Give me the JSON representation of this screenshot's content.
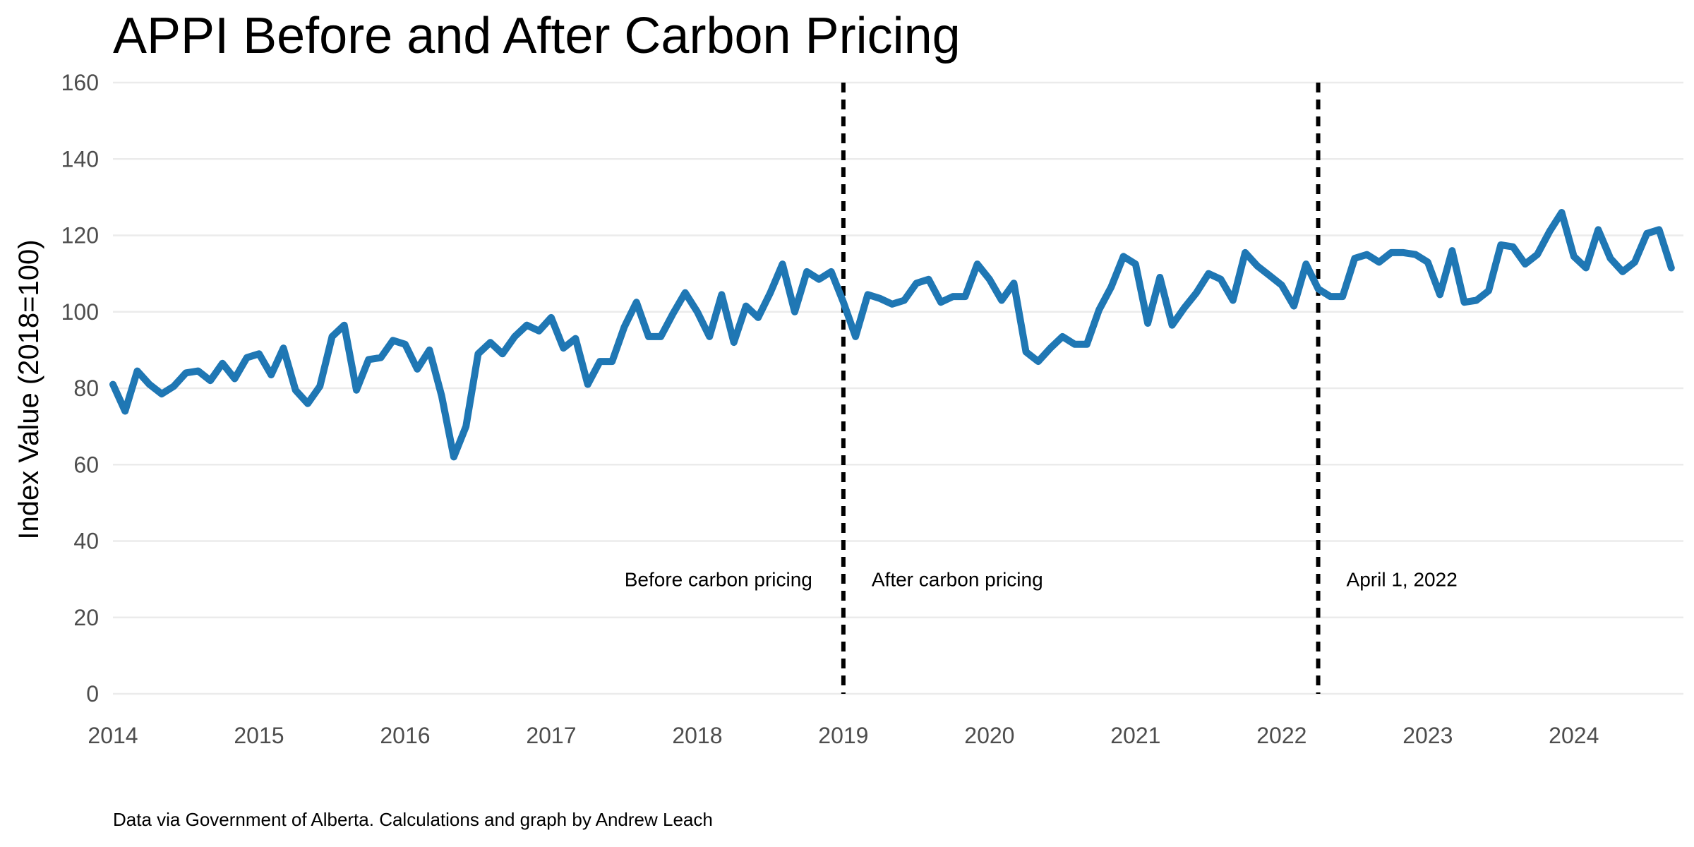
{
  "chart_data": {
    "type": "line",
    "title": "APPI Before and After Carbon Pricing",
    "ylabel": "Index Value (2018=100)",
    "xlabel": "",
    "caption": "Data via Government of Alberta. Calculations and graph by Andrew Leach",
    "ylim": [
      0,
      160
    ],
    "yticks": [
      0,
      20,
      40,
      60,
      80,
      100,
      120,
      140,
      160
    ],
    "xlim": [
      2014.0,
      2024.75
    ],
    "xticks": [
      "2014",
      "2015",
      "2016",
      "2017",
      "2018",
      "2019",
      "2020",
      "2021",
      "2022",
      "2023",
      "2024"
    ],
    "grid": true,
    "series": [
      {
        "color": "#1f77b4",
        "x_start": "2014-01",
        "x_step": "1 month",
        "values": [
          81,
          74,
          84.5,
          81,
          78.5,
          80.5,
          84,
          84.5,
          82,
          86.5,
          82.5,
          88,
          89,
          83.5,
          90.5,
          79.5,
          76,
          80.5,
          93.5,
          96.5,
          79.5,
          87.5,
          88,
          92.5,
          91.5,
          85,
          90,
          78,
          62,
          70,
          89,
          92,
          89,
          93.5,
          96.5,
          95,
          98.5,
          90.5,
          93,
          81,
          87,
          87,
          96,
          102.5,
          93.5,
          93.5,
          99.5,
          105,
          100,
          93.5,
          104.5,
          92,
          101.5,
          98.5,
          105,
          112.5,
          100,
          110.5,
          108.5,
          110.5,
          102.5,
          93.5,
          104.5,
          103.5,
          102,
          103,
          107.5,
          108.5,
          102.5,
          104,
          104,
          112.5,
          108.5,
          103,
          107.5,
          89.5,
          87,
          90.5,
          93.5,
          91.5,
          91.5,
          100.5,
          106.5,
          114.5,
          112.5,
          97,
          109,
          96.5,
          101,
          105,
          110,
          108.5,
          103,
          115.5,
          112,
          109.5,
          107,
          101.5,
          112.5,
          106,
          104,
          104,
          114,
          115,
          113,
          115.5,
          115.5,
          115,
          113,
          104.5,
          116,
          102.5,
          103,
          105.5,
          117.5,
          117,
          112.5,
          115,
          121,
          126,
          114.5,
          111.5,
          121.5,
          114,
          110.5,
          113,
          120.5,
          121.5,
          111.5
        ]
      }
    ],
    "reference_lines": [
      {
        "x": "2019-01",
        "style": "dashed",
        "color": "#000000"
      },
      {
        "x": "2022-04",
        "style": "dashed",
        "color": "#000000"
      }
    ],
    "annotations": [
      {
        "text": "Before carbon pricing",
        "x": "2019-01",
        "y": 30,
        "anchor": "end"
      },
      {
        "text": "After carbon pricing",
        "x": "2019-01",
        "y": 30,
        "anchor": "start"
      },
      {
        "text": "April 1, 2022",
        "x": "2022-04",
        "y": 30,
        "anchor": "start"
      }
    ]
  }
}
